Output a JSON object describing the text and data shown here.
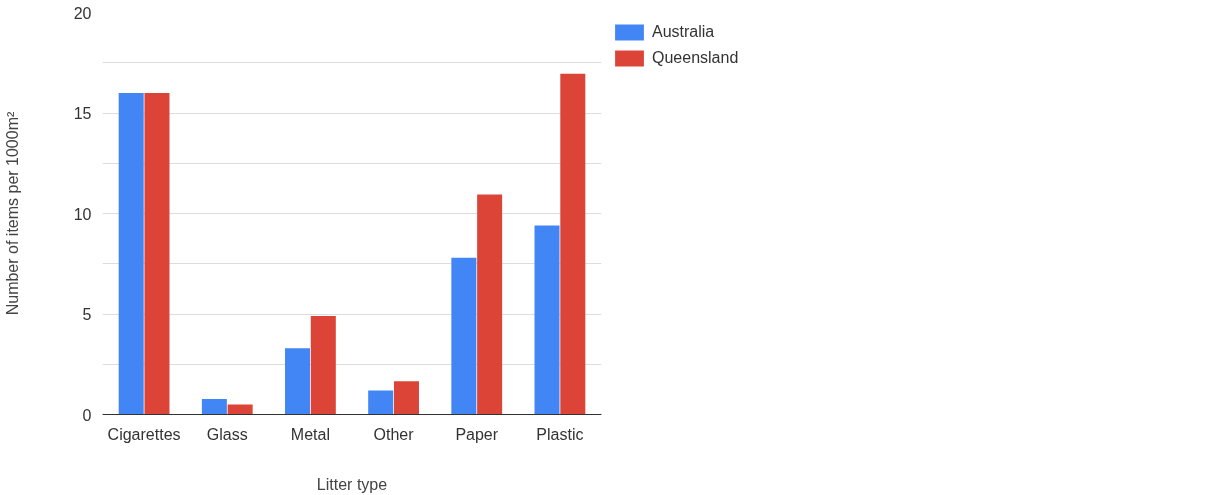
{
  "chart_data": {
    "type": "bar",
    "xlabel": "Litter type",
    "ylabel": "Number of items per 1000m²",
    "categories": [
      "Cigarettes",
      "Glass",
      "Metal",
      "Other",
      "Paper",
      "Plastic"
    ],
    "series": [
      {
        "name": "Australia",
        "color": "#4285f4",
        "values": [
          16,
          0.77,
          3.3,
          1.2,
          7.8,
          9.4
        ]
      },
      {
        "name": "Queensland",
        "color": "#db4437",
        "values": [
          16,
          0.5,
          4.9,
          1.65,
          10.95,
          16.95
        ]
      }
    ],
    "ylim": [
      0,
      20
    ],
    "yticks": [
      0,
      {
        "value": 2.5,
        "label": null
      },
      5,
      {
        "value": 7.5,
        "label": null
      },
      10,
      {
        "value": 12.5,
        "label": null
      },
      15,
      {
        "value": 17.5,
        "label": null
      },
      20
    ],
    "grid": "y",
    "legend": "top right"
  }
}
